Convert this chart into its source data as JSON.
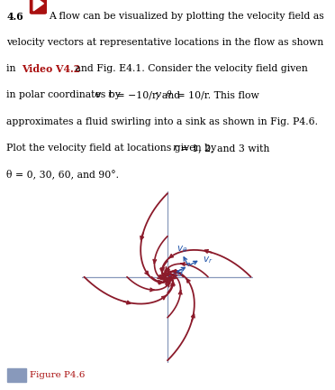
{
  "figure_label": "Figure P4.6",
  "spiral_color": "#8B1A2A",
  "axis_color": "#8899BB",
  "annotation_color": "#2255AA",
  "background_color": "#ffffff",
  "xlim": [
    -3.8,
    3.8
  ],
  "ylim": [
    -3.8,
    3.8
  ],
  "figsize": [
    3.72,
    4.32
  ],
  "dpi": 100
}
